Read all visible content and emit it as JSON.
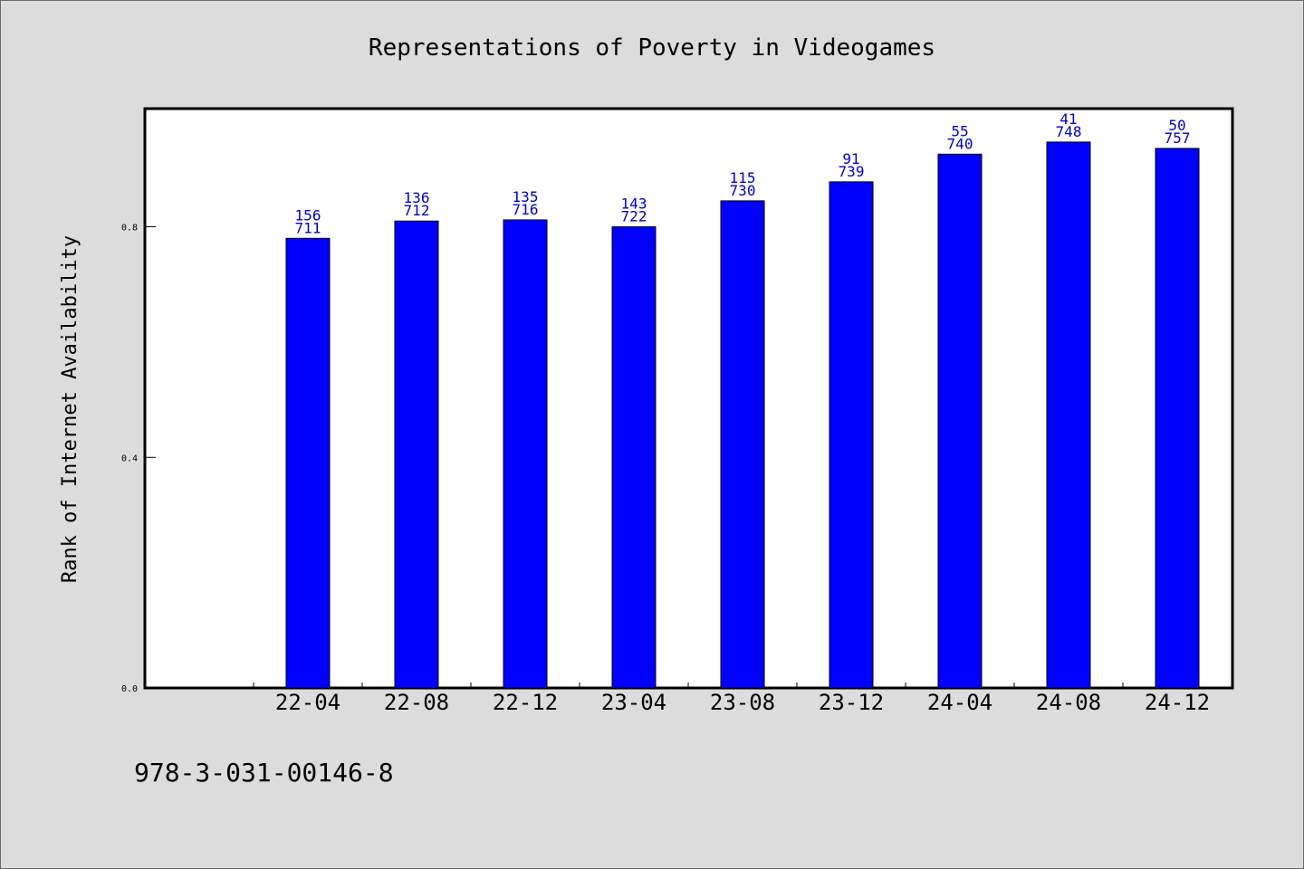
{
  "chart_data": {
    "type": "bar",
    "title": "Representations of Poverty in Videogames",
    "xlabel": "",
    "ylabel": "Rank of Internet Availability",
    "categories": [
      "22-04",
      "22-08",
      "22-12",
      "23-04",
      "23-08",
      "23-12",
      "24-04",
      "24-08",
      "24-12"
    ],
    "values": [
      0.78,
      0.81,
      0.812,
      0.8,
      0.845,
      0.878,
      0.926,
      0.947,
      0.936
    ],
    "top_labels": [
      "156",
      "136",
      "135",
      "143",
      "115",
      "91",
      "55",
      "41",
      "50"
    ],
    "bottom_labels": [
      "711",
      "712",
      "716",
      "722",
      "730",
      "739",
      "740",
      "748",
      "757"
    ],
    "yticks": [
      "0.0",
      "0.4",
      "0.8"
    ],
    "ytick_values": [
      0.0,
      0.4,
      0.8
    ],
    "ylim": [
      0,
      1.005
    ],
    "grid": false,
    "bar_color": "#0000ff",
    "label_color": "#0000cc"
  },
  "footer": {
    "text": "978-3-031-00146-8"
  }
}
